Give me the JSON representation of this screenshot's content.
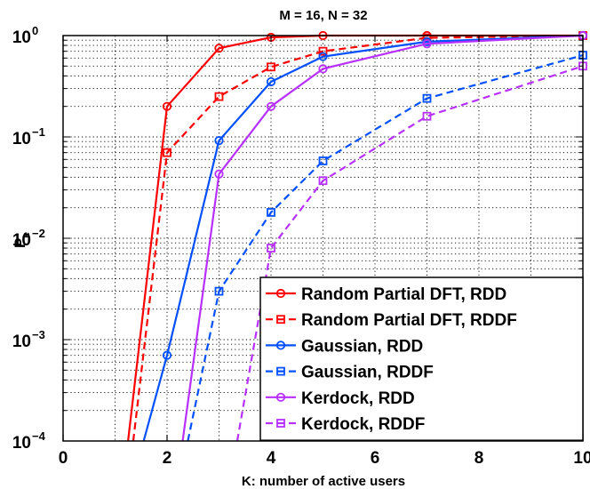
{
  "chart_data": {
    "type": "line",
    "title": "M = 16, N = 32",
    "xlabel": "K: number of active users",
    "ylabel": {
      "base": "P",
      "sub": "e"
    },
    "xlim": [
      0,
      10
    ],
    "ylim": [
      0.0001,
      1
    ],
    "yscale": "log",
    "grid": true,
    "legend_location": "lower-right",
    "x_ticks": [
      0,
      2,
      4,
      6,
      8,
      10
    ],
    "x_tick_labels": [
      "0",
      "2",
      "4",
      "6",
      "8",
      "10"
    ],
    "y_ticks": [
      {
        "value": 1,
        "base": "10",
        "exp": "0"
      },
      {
        "value": 0.1,
        "base": "10",
        "exp": "−1"
      },
      {
        "value": 0.01,
        "base": "10",
        "exp": "−2"
      },
      {
        "value": 0.001,
        "base": "10",
        "exp": "−3"
      },
      {
        "value": 0.0001,
        "base": "10",
        "exp": "−4"
      }
    ],
    "series": [
      {
        "name": "Random Partial DFT, RDD",
        "color": "#ff0000",
        "dash": "solid",
        "marker": "circle",
        "x": [
          1.25,
          2,
          3,
          4,
          5,
          7,
          10
        ],
        "y": [
          0.0001,
          0.2,
          0.75,
          0.96,
          1,
          1,
          1
        ]
      },
      {
        "name": "Random Partial DFT, RDDF",
        "color": "#ff0000",
        "dash": "dashed",
        "marker": "square",
        "x": [
          1.35,
          2,
          3,
          4,
          5,
          7,
          10
        ],
        "y": [
          0.0001,
          0.07,
          0.25,
          0.49,
          0.7,
          0.95,
          1
        ]
      },
      {
        "name": "Gaussian, RDD",
        "color": "#0050ff",
        "dash": "solid",
        "marker": "circle",
        "x": [
          1.55,
          2,
          3,
          4,
          5,
          7,
          10
        ],
        "y": [
          0.0001,
          0.0007,
          0.092,
          0.35,
          0.62,
          0.87,
          1
        ]
      },
      {
        "name": "Gaussian, RDDF",
        "color": "#0050ff",
        "dash": "dashed",
        "marker": "square",
        "x": [
          2.4,
          3,
          4,
          5,
          7,
          10
        ],
        "y": [
          0.0001,
          0.003,
          0.018,
          0.058,
          0.24,
          0.64
        ]
      },
      {
        "name": "Kerdock, RDD",
        "color": "#b830ff",
        "dash": "solid",
        "marker": "circle",
        "x": [
          2.3,
          3,
          4,
          5,
          7,
          10
        ],
        "y": [
          0.0001,
          0.043,
          0.2,
          0.47,
          0.83,
          1
        ]
      },
      {
        "name": "Kerdock, RDDF",
        "color": "#b830ff",
        "dash": "dashed",
        "marker": "square",
        "x": [
          3.35,
          4,
          5,
          7,
          10
        ],
        "y": [
          0.0001,
          0.008,
          0.037,
          0.16,
          0.5
        ]
      }
    ]
  }
}
